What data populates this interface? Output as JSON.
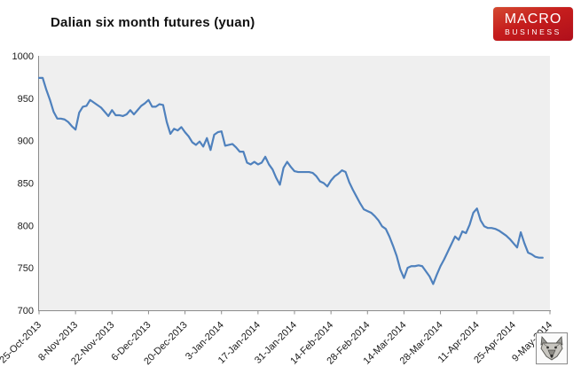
{
  "header": {
    "title": "Dalian six month futures (yuan)"
  },
  "logo": {
    "line1": "MACRO",
    "line2": "BUSINESS",
    "bg_top_color": "#d44a31",
    "bg_bottom_color": "#b00f1b",
    "text_color": "#ffffff"
  },
  "icons": {
    "corner_emblem": "wolf-icon"
  },
  "chart_data": {
    "type": "line",
    "title": "Dalian six month futures (yuan)",
    "xlabel": "",
    "ylabel": "",
    "ylim": [
      700,
      1000
    ],
    "y_ticks": [
      1000,
      950,
      900,
      850,
      800,
      750,
      700
    ],
    "x_tick_labels": [
      "25-Oct-2013",
      "8-Nov-2013",
      "22-Nov-2013",
      "6-Dec-2013",
      "20-Dec-2013",
      "3-Jan-2014",
      "17-Jan-2014",
      "31-Jan-2014",
      "14-Feb-2014",
      "28-Feb-2014",
      "14-Mar-2014",
      "28-Mar-2014",
      "11-Apr-2014",
      "25-Apr-2014",
      "9-May-2014"
    ],
    "points_per_tick_interval": 10,
    "grid": false,
    "legend": "none",
    "plot_bg_color": "#efefef",
    "axis_color": "#8c8c8c",
    "tick_label_color": "#1a1a1a",
    "line_color": "#4f81bd",
    "series": [
      {
        "name": "Dalian six month futures (yuan)",
        "values": [
          974,
          974,
          960,
          948,
          934,
          926,
          926,
          925,
          922,
          917,
          913,
          933,
          940,
          941,
          948,
          945,
          942,
          939,
          934,
          929,
          936,
          930,
          930,
          929,
          931,
          936,
          931,
          936,
          941,
          944,
          948,
          940,
          940,
          943,
          942,
          922,
          908,
          914,
          912,
          916,
          910,
          905,
          898,
          895,
          899,
          893,
          903,
          889,
          907,
          910,
          911,
          894,
          895,
          896,
          892,
          887,
          887,
          874,
          872,
          875,
          872,
          874,
          881,
          872,
          866,
          856,
          848,
          868,
          875,
          869,
          864,
          863,
          863,
          863,
          863,
          862,
          858,
          852,
          850,
          846,
          853,
          858,
          861,
          865,
          863,
          851,
          842,
          834,
          826,
          819,
          817,
          815,
          811,
          806,
          799,
          796,
          787,
          776,
          764,
          748,
          738,
          750,
          752,
          752,
          753,
          752,
          746,
          740,
          731,
          742,
          752,
          760,
          769,
          778,
          787,
          783,
          793,
          791,
          801,
          815,
          820,
          806,
          799,
          797,
          797,
          796,
          794,
          791,
          788,
          784,
          779,
          774,
          792,
          779,
          768,
          766,
          763,
          762,
          762
        ]
      }
    ]
  }
}
